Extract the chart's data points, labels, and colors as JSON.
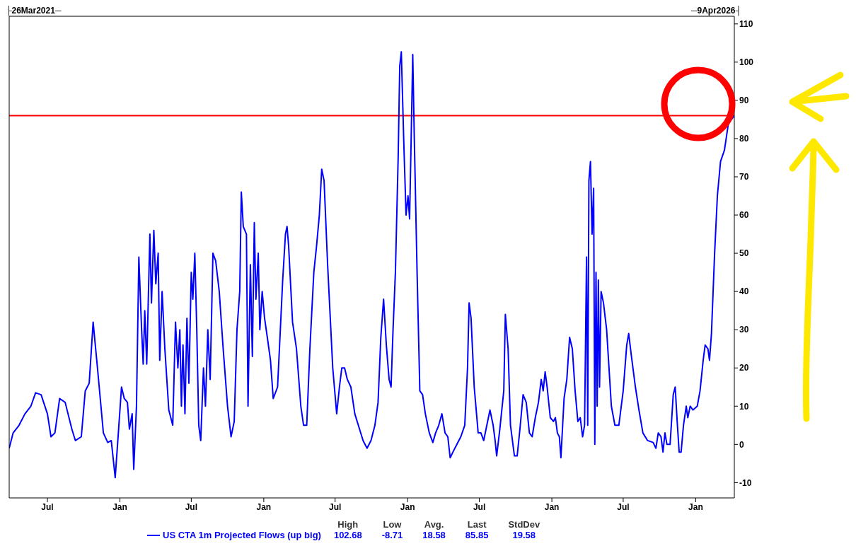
{
  "chart_data": {
    "type": "line",
    "x": [
      "2021-03-26",
      "2021-04-05",
      "2021-04-20",
      "2021-05-05",
      "2021-05-20",
      "2021-06-01",
      "2021-06-15",
      "2021-07-01",
      "2021-07-10",
      "2021-07-20",
      "2021-08-01",
      "2021-08-15",
      "2021-09-01",
      "2021-09-10",
      "2021-09-25",
      "2021-10-05",
      "2021-10-15",
      "2021-10-25",
      "2021-11-05",
      "2021-11-20",
      "2021-12-01",
      "2021-12-10",
      "2021-12-20",
      "2021-12-28",
      "2022-01-05",
      "2022-01-12",
      "2022-01-20",
      "2022-01-25",
      "2022-02-01",
      "2022-02-05",
      "2022-02-12",
      "2022-02-18",
      "2022-02-25",
      "2022-03-01",
      "2022-03-05",
      "2022-03-10",
      "2022-03-18",
      "2022-03-22",
      "2022-03-28",
      "2022-04-02",
      "2022-04-08",
      "2022-04-12",
      "2022-04-18",
      "2022-04-25",
      "2022-05-05",
      "2022-05-15",
      "2022-05-22",
      "2022-05-28",
      "2022-06-02",
      "2022-06-06",
      "2022-06-10",
      "2022-06-15",
      "2022-06-20",
      "2022-06-25",
      "2022-07-01",
      "2022-07-05",
      "2022-07-10",
      "2022-07-15",
      "2022-07-20",
      "2022-07-25",
      "2022-08-01",
      "2022-08-06",
      "2022-08-12",
      "2022-08-18",
      "2022-08-25",
      "2022-09-01",
      "2022-09-10",
      "2022-09-20",
      "2022-10-01",
      "2022-10-10",
      "2022-10-18",
      "2022-10-25",
      "2022-11-01",
      "2022-11-05",
      "2022-11-10",
      "2022-11-18",
      "2022-11-22",
      "2022-11-28",
      "2022-12-03",
      "2022-12-08",
      "2022-12-12",
      "2022-12-18",
      "2022-12-22",
      "2022-12-28",
      "2023-01-03",
      "2023-01-10",
      "2023-01-18",
      "2023-01-25",
      "2023-02-05",
      "2023-02-12",
      "2023-02-18",
      "2023-02-25",
      "2023-03-01",
      "2023-03-05",
      "2023-03-15",
      "2023-03-25",
      "2023-04-05",
      "2023-04-12",
      "2023-04-20",
      "2023-04-28",
      "2023-05-08",
      "2023-05-15",
      "2023-05-22",
      "2023-05-28",
      "2023-06-03",
      "2023-06-12",
      "2023-06-25",
      "2023-07-05",
      "2023-07-12",
      "2023-07-18",
      "2023-07-25",
      "2023-08-01",
      "2023-08-10",
      "2023-08-20",
      "2023-09-01",
      "2023-09-10",
      "2023-09-20",
      "2023-09-30",
      "2023-10-10",
      "2023-10-18",
      "2023-10-25",
      "2023-11-01",
      "2023-11-08",
      "2023-11-15",
      "2023-11-20",
      "2023-11-25",
      "2023-12-01",
      "2023-12-08",
      "2023-12-12",
      "2023-12-16",
      "2023-12-22",
      "2023-12-28",
      "2024-01-02",
      "2024-01-06",
      "2024-01-10",
      "2024-01-14",
      "2024-01-18",
      "2024-01-25",
      "2024-02-01",
      "2024-02-08",
      "2024-02-15",
      "2024-02-25",
      "2024-03-05",
      "2024-03-12",
      "2024-03-20",
      "2024-03-28",
      "2024-04-05",
      "2024-04-12",
      "2024-04-18",
      "2024-04-25",
      "2024-05-05",
      "2024-05-15",
      "2024-05-25",
      "2024-06-01",
      "2024-06-05",
      "2024-06-10",
      "2024-06-18",
      "2024-06-28",
      "2024-07-05",
      "2024-07-12",
      "2024-07-20",
      "2024-07-28",
      "2024-08-05",
      "2024-08-10",
      "2024-08-14",
      "2024-08-22",
      "2024-09-01",
      "2024-09-05",
      "2024-09-12",
      "2024-09-18",
      "2024-09-28",
      "2024-10-05",
      "2024-10-12",
      "2024-10-20",
      "2024-10-28",
      "2024-11-05",
      "2024-11-12",
      "2024-11-20",
      "2024-11-28",
      "2024-12-05",
      "2024-12-10",
      "2024-12-15",
      "2024-12-20",
      "2024-12-28",
      "2025-01-05",
      "2025-01-10",
      "2025-01-15",
      "2025-01-20",
      "2025-01-24",
      "2025-02-01",
      "2025-02-08",
      "2025-02-15",
      "2025-02-22",
      "2025-03-01",
      "2025-03-08",
      "2025-03-14",
      "2025-03-20",
      "2025-03-25",
      "2025-03-30",
      "2025-04-02",
      "2025-04-05",
      "2025-04-09",
      "2025-04-13",
      "2025-04-17",
      "2025-04-20",
      "2025-04-23",
      "2025-04-26",
      "2025-04-29",
      "2025-05-02",
      "2025-05-06",
      "2025-05-12",
      "2025-05-20",
      "2025-06-01",
      "2025-06-10",
      "2025-06-20",
      "2025-07-01",
      "2025-07-10",
      "2025-07-15",
      "2025-07-22",
      "2025-08-01",
      "2025-08-10",
      "2025-08-20",
      "2025-09-01",
      "2025-09-15",
      "2025-09-22",
      "2025-09-28",
      "2025-10-05",
      "2025-10-10",
      "2025-10-15",
      "2025-10-20",
      "2025-10-28",
      "2025-11-05",
      "2025-11-10",
      "2025-11-15",
      "2025-11-20",
      "2025-11-25",
      "2025-12-01",
      "2025-12-08",
      "2025-12-12",
      "2025-12-18",
      "2025-12-25",
      "2026-01-05",
      "2026-01-12",
      "2026-01-20",
      "2026-01-25",
      "2026-02-01",
      "2026-02-05",
      "2026-02-10",
      "2026-02-18",
      "2026-02-25",
      "2026-03-05",
      "2026-03-15",
      "2026-03-25",
      "2026-04-09"
    ],
    "series": [
      {
        "name": "US CTA 1m Projected Flows (up big)",
        "color": "#0000ff",
        "values": [
          -1,
          3,
          5,
          8,
          10,
          13.5,
          13,
          8,
          2,
          3,
          12,
          11,
          4,
          1,
          2,
          14,
          16,
          32,
          20,
          3,
          0.5,
          1,
          -8.7,
          3,
          15,
          12,
          11,
          4,
          8,
          -6.5,
          10,
          49,
          30,
          21,
          35,
          21,
          55,
          37,
          56,
          42,
          50,
          22,
          40,
          25,
          9,
          5,
          32,
          20,
          30,
          10,
          26,
          8,
          33,
          16,
          45,
          38,
          50,
          30,
          5,
          1,
          20,
          10,
          30,
          17,
          50,
          48,
          40,
          25,
          10,
          2,
          6,
          30,
          40,
          66,
          57,
          55,
          10,
          47,
          23,
          58,
          38,
          50,
          30,
          40,
          33,
          28,
          22,
          12,
          15,
          30,
          43,
          55,
          57,
          52,
          32,
          25,
          10,
          5,
          5,
          25,
          45,
          52,
          60,
          72,
          69,
          47,
          20,
          8,
          15,
          20,
          20,
          17,
          15,
          8,
          4,
          1,
          -1,
          1,
          5,
          11,
          28,
          38,
          26,
          17,
          15,
          30,
          45,
          75,
          99,
          102.7,
          80,
          60,
          65,
          59,
          80,
          102,
          80,
          45,
          14,
          13,
          8,
          3,
          0.5,
          3,
          5,
          8,
          3,
          2,
          -3.5,
          -2,
          0,
          2,
          5,
          20,
          37,
          33,
          15,
          3,
          3,
          1,
          5,
          9,
          5,
          1,
          -3,
          4,
          14,
          34,
          25,
          5,
          -3,
          -3,
          4,
          13,
          11,
          3,
          2,
          7,
          11,
          17,
          14,
          19,
          15,
          7,
          6,
          7,
          3,
          2,
          -3.5,
          12,
          17,
          28,
          25,
          14,
          6,
          7,
          2,
          5,
          49,
          5,
          69,
          74,
          55,
          67,
          0,
          45,
          10,
          43,
          15,
          40,
          37,
          30,
          10,
          5,
          5,
          14,
          26,
          29,
          23,
          15,
          9,
          3,
          1,
          0.5,
          -1,
          3,
          2,
          -2,
          3,
          0,
          0,
          13,
          15,
          6,
          -2,
          -2,
          5,
          10,
          7,
          10,
          9,
          10,
          14,
          22,
          26,
          25,
          22,
          29,
          50,
          65,
          74,
          77,
          84,
          86
        ]
      }
    ],
    "xlim": [
      "2021-03-26",
      "2026-04-09"
    ],
    "xticks": [
      {
        "value": "2021-07-01",
        "label": "Jul"
      },
      {
        "value": "2022-01-01",
        "label": "Jan"
      },
      {
        "value": "2022-07-01",
        "label": "Jul"
      },
      {
        "value": "2023-01-01",
        "label": "Jan"
      },
      {
        "value": "2023-07-01",
        "label": "Jul"
      },
      {
        "value": "2024-01-01",
        "label": "Jan"
      },
      {
        "value": "2024-07-01",
        "label": "Jul"
      },
      {
        "value": "2025-01-01",
        "label": "Jan"
      },
      {
        "value": "2025-07-01",
        "label": "Jul"
      },
      {
        "value": "2026-01-01",
        "label": "Jan"
      }
    ],
    "ylim": [
      -14,
      112
    ],
    "yticks": [
      -10,
      0,
      10,
      20,
      30,
      40,
      50,
      60,
      70,
      80,
      90,
      100,
      110
    ],
    "ref_lines": [
      {
        "axis": "y",
        "value": 86,
        "color": "#ff0000",
        "line_style": "solid"
      }
    ],
    "annotations": [
      "├26Mar2021─",
      "─9Apr2026┤",
      "High",
      "Low",
      "Avg.",
      "Last",
      "StdDev",
      "102.68",
      "-8.71",
      "18.58",
      "85.85",
      "19.58"
    ],
    "grid": false,
    "legend": "bottom",
    "marker": "none",
    "line_style": "solid"
  }
}
